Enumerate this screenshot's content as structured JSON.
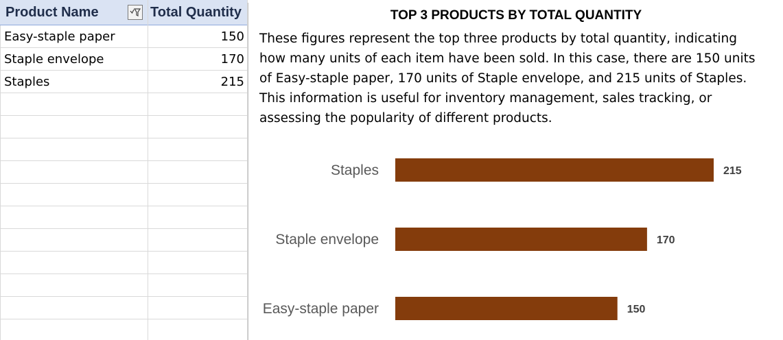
{
  "table": {
    "headers": [
      "Product Name",
      "Total Quantity"
    ],
    "rows": [
      {
        "name": "Easy-staple paper",
        "qty": "150"
      },
      {
        "name": "Staple envelope",
        "qty": "170"
      },
      {
        "name": "Staples",
        "qty": "215"
      }
    ],
    "filter_icon": "filter-dropdown-icon"
  },
  "chart": {
    "title": "TOP 3 PRODUCTS BY TOTAL QUANTITY",
    "description": "These figures represent the top three products by total quantity, indicating how many units of each item have been sold. In this case, there are 150 units of Easy-staple paper, 170 units of Staple envelope, and 215 units of Staples. This information is useful for inventory management, sales tracking, or assessing the popularity of different products."
  },
  "chart_data": {
    "type": "bar",
    "orientation": "horizontal",
    "title": "TOP 3 PRODUCTS BY TOTAL QUANTITY",
    "categories": [
      "Staples",
      "Staple envelope",
      "Easy-staple paper"
    ],
    "values": [
      215,
      170,
      150
    ],
    "xlim": [
      0,
      215
    ],
    "grid": false,
    "legend": "none",
    "bar_color": "#843c0c"
  }
}
